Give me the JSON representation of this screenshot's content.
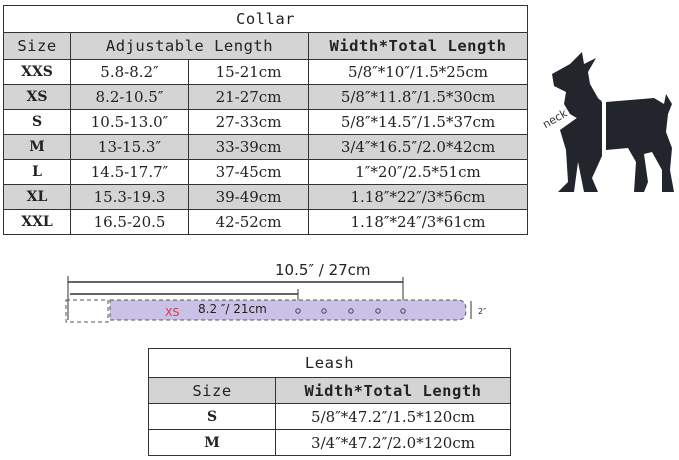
{
  "collar": {
    "title": "Collar",
    "headers": {
      "size": "Size",
      "adjustable": "Adjustable Length",
      "width_total": "Width*Total Length"
    },
    "rows": [
      {
        "size": "XXS",
        "in": "5.8-8.2″",
        "cm": "15-21cm",
        "wt": "5/8″*10″/1.5*25cm"
      },
      {
        "size": "XS",
        "in": "8.2-10.5″",
        "cm": "21-27cm",
        "wt": "5/8″*11.8″/1.5*30cm"
      },
      {
        "size": "S",
        "in": "10.5-13.0″",
        "cm": "27-33cm",
        "wt": "5/8″*14.5″/1.5*37cm"
      },
      {
        "size": "M",
        "in": "13-15.3″",
        "cm": "33-39cm",
        "wt": "3/4″*16.5″/2.0*42cm"
      },
      {
        "size": "L",
        "in": "14.5-17.7″",
        "cm": "37-45cm",
        "wt": "1″*20″/2.5*51cm"
      },
      {
        "size": "XL",
        "in": "15.3-19.3",
        "cm": "39-49cm",
        "wt": "1.18″*22″/3*56cm"
      },
      {
        "size": "XXL",
        "in": "16.5-20.5",
        "cm": "42-52cm",
        "wt": "1.18″*24″/3*61cm"
      }
    ]
  },
  "dog": {
    "label": "neck"
  },
  "belt": {
    "max_label": "10.5″ / 27cm",
    "min_label": "8.2 ″/ 21cm",
    "size_label": "XS",
    "width_label": "2″",
    "colors": {
      "body": "#c9c2e6",
      "size_text": "#e0304a"
    }
  },
  "leash": {
    "title": "Leash",
    "headers": {
      "size": "Size",
      "width_total": "Width*Total Length"
    },
    "rows": [
      {
        "size": "S",
        "wt": "5/8″*47.2″/1.5*120cm"
      },
      {
        "size": "M",
        "wt": "3/4″*47.2″/2.0*120cm"
      }
    ]
  }
}
